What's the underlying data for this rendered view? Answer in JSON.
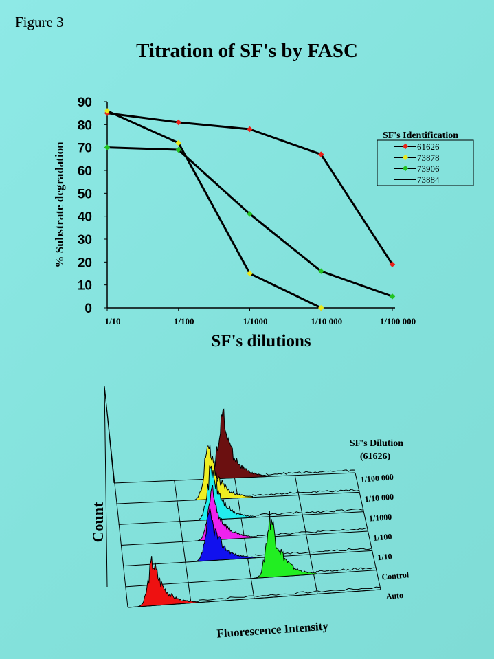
{
  "figure_label": "Figure 3",
  "title": "Titration of SF's by FASC",
  "chart_data": [
    {
      "type": "line",
      "xlabel": "SF's dilutions",
      "ylabel": "% Substrate degradation",
      "categories": [
        "1/10",
        "1/100",
        "1/1000",
        "1/10 000",
        "1/100 000"
      ],
      "ylim": [
        0,
        90
      ],
      "yticks": [
        0,
        10,
        20,
        30,
        40,
        50,
        60,
        70,
        80,
        90
      ],
      "legend_title": "SF's  Identification",
      "legend_position": "right",
      "series": [
        {
          "name": "61626",
          "color": "#e8221a",
          "values": [
            85,
            81,
            78,
            67,
            19
          ]
        },
        {
          "name": "73878",
          "color": "#e8e81a",
          "values": [
            86,
            72,
            15,
            0,
            null
          ]
        },
        {
          "name": "73906",
          "color": "#22c322",
          "values": [
            70,
            69,
            41,
            16,
            5
          ]
        },
        {
          "name": "73884",
          "color": "#000000",
          "values": [
            null,
            null,
            null,
            null,
            null
          ]
        }
      ]
    },
    {
      "type": "area",
      "subtype": "3d-histogram",
      "xlabel": "Fluorescence Intensity",
      "ylabel": "Count",
      "depth_title_line1": "SF's Dilution",
      "depth_title_line2": "(61626)",
      "depth_labels": [
        "Auto",
        "Control",
        "1/10",
        "1/100",
        "1/1000",
        "1/10 000",
        "1/100 000"
      ],
      "histograms": [
        {
          "label": "Auto",
          "color": "#ee1111",
          "peak_intensity": 0.1
        },
        {
          "label": "Control",
          "color": "#22ee22",
          "peak_intensity": 0.58
        },
        {
          "label": "1/10",
          "color": "#1111ee",
          "peak_intensity": 0.35
        },
        {
          "label": "1/100",
          "color": "#ee22ee",
          "peak_intensity": 0.37
        },
        {
          "label": "1/1000",
          "color": "#22eeee",
          "peak_intensity": 0.38
        },
        {
          "label": "1/10 000",
          "color": "#eeee22",
          "peak_intensity": 0.38
        },
        {
          "label": "1/100 000",
          "color": "#6b1010",
          "peak_intensity": 0.45
        }
      ]
    }
  ]
}
